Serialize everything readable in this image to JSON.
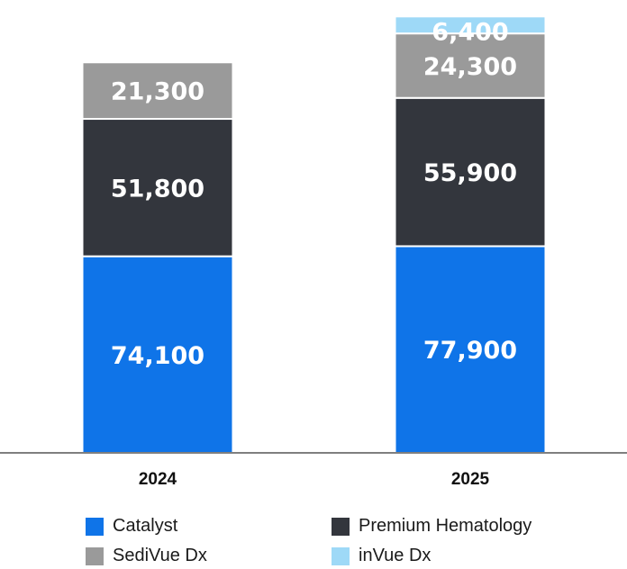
{
  "chart_data": {
    "type": "bar",
    "stacked": true,
    "categories": [
      "2024",
      "2025"
    ],
    "series": [
      {
        "name": "Catalyst",
        "color": "#0F74E8",
        "values": [
          74100,
          77900
        ],
        "labels": [
          "74,100",
          "77,900"
        ]
      },
      {
        "name": "Premium Hematology",
        "color": "#33363D",
        "values": [
          51800,
          55900
        ],
        "labels": [
          "51,800",
          "55,900"
        ]
      },
      {
        "name": "SediVue Dx",
        "color": "#9A9A9A",
        "values": [
          21300,
          24300
        ],
        "labels": [
          "21,300",
          "24,300"
        ]
      },
      {
        "name": "inVue Dx",
        "color": "#9ED9F7",
        "values": [
          null,
          6400
        ],
        "labels": [
          "",
          "6,400"
        ]
      }
    ],
    "title": "",
    "xlabel": "",
    "ylabel": "",
    "ylim": [
      0,
      164600
    ],
    "grid": false,
    "legend_position": "bottom"
  }
}
